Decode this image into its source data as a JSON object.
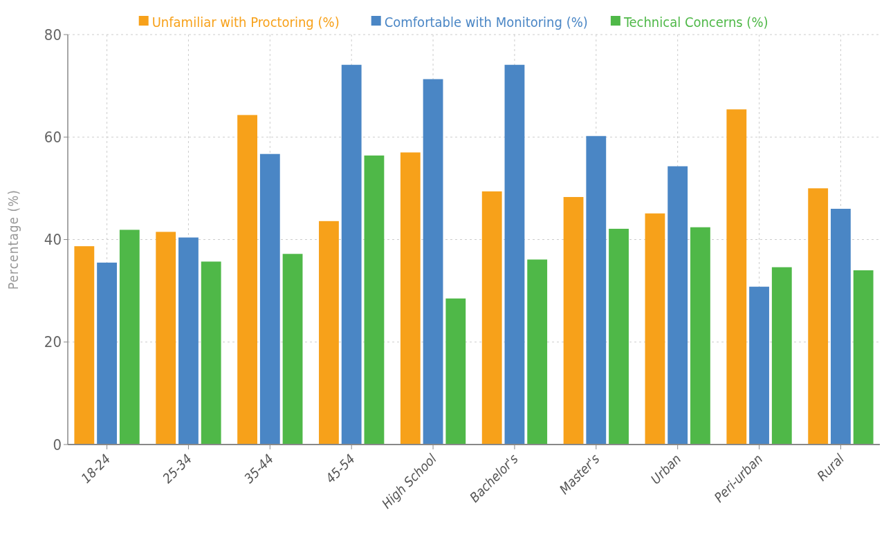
{
  "chart_data": {
    "type": "bar",
    "ylabel": "Percentage (%)",
    "categories": [
      "18-24",
      "25-34",
      "35-44",
      "45-54",
      "High School",
      "Bachelor's",
      "Master's",
      "Urban",
      "Peri-urban",
      "Rural"
    ],
    "series": [
      {
        "name": "Unfamiliar with Proctoring (%)",
        "color": "#f7a11a",
        "values": [
          38.7,
          41.5,
          64.3,
          43.6,
          57.0,
          49.4,
          48.3,
          45.1,
          65.4,
          50.0
        ]
      },
      {
        "name": "Comfortable with Monitoring (%)",
        "color": "#4a86c5",
        "values": [
          35.5,
          40.4,
          56.7,
          74.1,
          71.3,
          74.1,
          60.2,
          54.3,
          30.8,
          46.0
        ]
      },
      {
        "name": "Technical Concerns (%)",
        "color": "#4fb848",
        "values": [
          41.9,
          35.7,
          37.2,
          56.4,
          28.5,
          36.1,
          42.1,
          42.4,
          34.6,
          34.0
        ]
      }
    ],
    "ylim": [
      0,
      80
    ],
    "yticks": [
      0,
      20,
      40,
      60,
      80
    ],
    "grid": true,
    "legend": "top"
  }
}
